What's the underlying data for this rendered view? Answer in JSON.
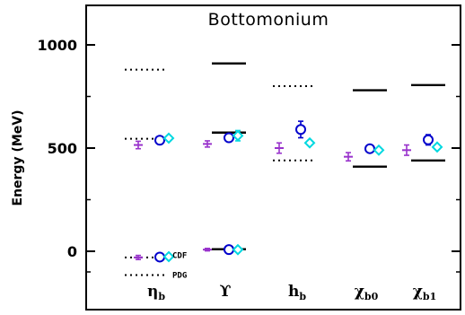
{
  "chart_data": {
    "type": "scatter",
    "title": "Bottomonium",
    "ylabel": "Energy (MeV)",
    "xlabel": "",
    "ylim": [
      -145,
      1200
    ],
    "yticks": [
      0,
      500,
      1000
    ],
    "ytick_labels": [
      "0",
      "500",
      "1000"
    ],
    "categories": [
      {
        "main": "η",
        "sub": "b"
      },
      {
        "main": "ϒ",
        "sub": ""
      },
      {
        "main": "h",
        "sub": "b"
      },
      {
        "main": "χ",
        "sub": "b0"
      },
      {
        "main": "χ",
        "sub": "b1"
      }
    ],
    "colors": {
      "purple": "#9933cc",
      "blue": "#0000cc",
      "cyan": "#00d8e0",
      "experiment": "#000000"
    },
    "experiment_solid": [
      {
        "category": 1,
        "values": [
          10,
          575,
          910
        ]
      },
      {
        "category": 3,
        "values": [
          410,
          780
        ]
      },
      {
        "category": 4,
        "values": [
          440,
          805
        ]
      }
    ],
    "experiment_dotted": [
      {
        "category": 0,
        "values": [
          880,
          545,
          -30,
          -115
        ]
      },
      {
        "category": 2,
        "values": [
          800,
          440
        ]
      }
    ],
    "series": [
      {
        "marker": "plus",
        "color": "purple",
        "points": [
          {
            "category": 0,
            "y": 515,
            "err": 18
          },
          {
            "category": 0,
            "y": -30,
            "err": 10
          },
          {
            "category": 1,
            "y": 520,
            "err": 15
          },
          {
            "category": 1,
            "y": 8,
            "err": 6
          },
          {
            "category": 2,
            "y": 500,
            "err": 25
          },
          {
            "category": 3,
            "y": 458,
            "err": 20
          },
          {
            "category": 4,
            "y": 490,
            "err": 25
          }
        ]
      },
      {
        "marker": "circle",
        "color": "blue",
        "points": [
          {
            "category": 0,
            "y": 538,
            "err": 10
          },
          {
            "category": 0,
            "y": -28,
            "err": 6
          },
          {
            "category": 1,
            "y": 550,
            "err": 12
          },
          {
            "category": 1,
            "y": 8,
            "err": 4
          },
          {
            "category": 2,
            "y": 590,
            "err": 40
          },
          {
            "category": 3,
            "y": 497,
            "err": 15
          },
          {
            "category": 4,
            "y": 540,
            "err": 25
          }
        ]
      },
      {
        "marker": "diamond",
        "color": "cyan",
        "points": [
          {
            "category": 0,
            "y": 548,
            "err": 10
          },
          {
            "category": 0,
            "y": -26,
            "err": 5
          },
          {
            "category": 1,
            "y": 560,
            "err": 25
          },
          {
            "category": 1,
            "y": 8,
            "err": 4
          },
          {
            "category": 2,
            "y": 525,
            "err": 8
          },
          {
            "category": 3,
            "y": 490,
            "err": 8
          },
          {
            "category": 4,
            "y": 505,
            "err": 10
          }
        ]
      }
    ],
    "annotations": [
      {
        "category": 0,
        "y": -20,
        "text": "CDF"
      },
      {
        "category": 0,
        "y": -115,
        "text": "PDG"
      }
    ],
    "grid": false,
    "legend": "none"
  }
}
